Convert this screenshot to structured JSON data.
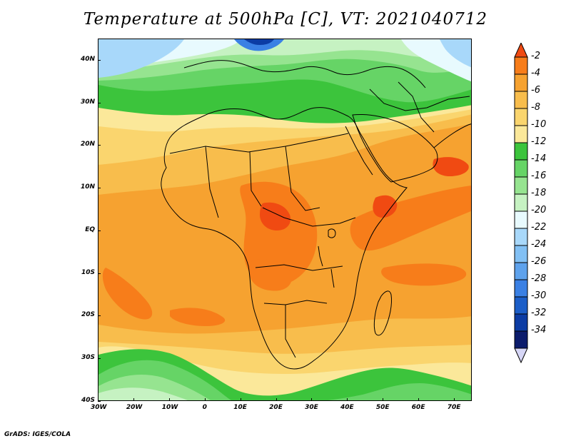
{
  "title": "Temperature at 500hPa [C], VT: 2021040712",
  "credit": "GrADS: IGES/COLA",
  "map": {
    "lon_range": [
      -30,
      75
    ],
    "lat_range": [
      -40,
      45
    ],
    "lon_ticks": [
      {
        "value": -30,
        "label": "30W"
      },
      {
        "value": -20,
        "label": "20W"
      },
      {
        "value": -10,
        "label": "10W"
      },
      {
        "value": 0,
        "label": "0"
      },
      {
        "value": 10,
        "label": "10E"
      },
      {
        "value": 20,
        "label": "20E"
      },
      {
        "value": 30,
        "label": "30E"
      },
      {
        "value": 40,
        "label": "40E"
      },
      {
        "value": 50,
        "label": "50E"
      },
      {
        "value": 60,
        "label": "60E"
      },
      {
        "value": 70,
        "label": "70E"
      }
    ],
    "lat_ticks": [
      {
        "value": 40,
        "label": "40N"
      },
      {
        "value": 30,
        "label": "30N"
      },
      {
        "value": 20,
        "label": "20N"
      },
      {
        "value": 10,
        "label": "10N"
      },
      {
        "value": 0,
        "label": "EQ"
      },
      {
        "value": -10,
        "label": "10S"
      },
      {
        "value": -20,
        "label": "20S"
      },
      {
        "value": -30,
        "label": "30S"
      },
      {
        "value": -40,
        "label": "40S"
      }
    ]
  },
  "colorbar": {
    "levels": [
      "-2",
      "-4",
      "-6",
      "-8",
      "-10",
      "-12",
      "-14",
      "-16",
      "-18",
      "-20",
      "-22",
      "-24",
      "-26",
      "-28",
      "-30",
      "-32",
      "-34"
    ],
    "colors": [
      "#f04a12",
      "#f77d1a",
      "#f6a230",
      "#f8bd4c",
      "#fad56e",
      "#fbe89a",
      "#3cc43c",
      "#66d466",
      "#96e490",
      "#c6f2c2",
      "#e8fafe",
      "#a8d8fa",
      "#82c0f4",
      "#5ea2ec",
      "#3a80e4",
      "#1c5ec8",
      "#0c3ca4",
      "#0c1c6c",
      "#d6d6f6"
    ]
  }
}
